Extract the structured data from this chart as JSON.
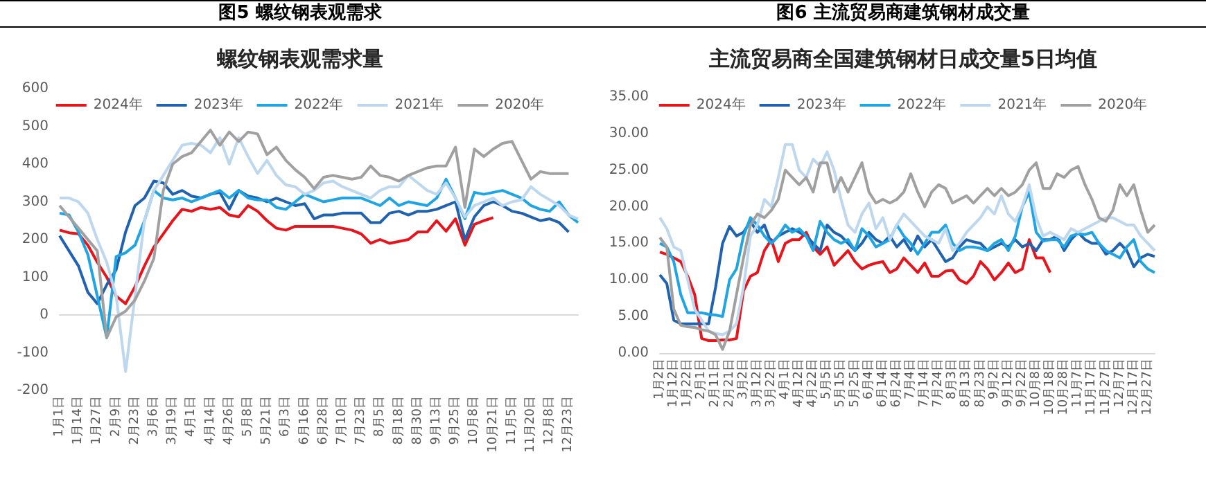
{
  "chart_data": [
    {
      "type": "line",
      "title": "图5 螺纹钢表观需求",
      "subtitle": "螺纹钢表观需求量",
      "categories": [
        "1月1日",
        null,
        "1月14日",
        null,
        "1月27日",
        null,
        "2月9日",
        null,
        "2月23日",
        null,
        "3月6日",
        null,
        "3月19日",
        null,
        "4月1日",
        null,
        "4月14日",
        null,
        "4月26日",
        null,
        "5月8日",
        null,
        "5月21日",
        null,
        "6月3日",
        null,
        "6月16日",
        null,
        "6月28日",
        null,
        "7月10日",
        null,
        "7月23日",
        null,
        "8月5日",
        null,
        "8月18日",
        null,
        "8月30日",
        null,
        "9月13日",
        null,
        "9月25日",
        null,
        "10月8日",
        null,
        "10月21日",
        null,
        "11月5日",
        null,
        "11月20日",
        null,
        "12月8日",
        null,
        "12月23日",
        null
      ],
      "series": [
        {
          "name": "2024年",
          "color": "#e8141b",
          "values": [
            225,
            218,
            215,
            185,
            140,
            100,
            50,
            30,
            75,
            130,
            180,
            215,
            250,
            280,
            275,
            285,
            280,
            285,
            265,
            260,
            290,
            275,
            250,
            230,
            225,
            235,
            235,
            235,
            235,
            235,
            230,
            225,
            215,
            190,
            200,
            190,
            195,
            200,
            220,
            220,
            250,
            222,
            255,
            185,
            240,
            250,
            258,
            null,
            null,
            null,
            null,
            null,
            null,
            null,
            null,
            null
          ]
        },
        {
          "name": "2023年",
          "color": "#1f63b0",
          "values": [
            210,
            170,
            130,
            60,
            30,
            80,
            120,
            220,
            290,
            310,
            355,
            350,
            320,
            330,
            315,
            310,
            320,
            325,
            280,
            330,
            315,
            310,
            300,
            310,
            300,
            290,
            295,
            255,
            265,
            265,
            270,
            270,
            270,
            245,
            245,
            270,
            275,
            265,
            275,
            275,
            280,
            290,
            300,
            200,
            260,
            290,
            300,
            290,
            275,
            270,
            260,
            250,
            255,
            245,
            220,
            null
          ]
        },
        {
          "name": "2022年",
          "color": "#1fa5e3",
          "values": [
            270,
            265,
            220,
            160,
            50,
            -60,
            155,
            165,
            185,
            250,
            330,
            310,
            305,
            310,
            300,
            310,
            320,
            330,
            310,
            330,
            310,
            305,
            305,
            285,
            280,
            300,
            320,
            310,
            300,
            305,
            310,
            310,
            310,
            300,
            290,
            310,
            290,
            300,
            295,
            290,
            310,
            360,
            310,
            255,
            325,
            320,
            325,
            330,
            320,
            310,
            290,
            280,
            275,
            300,
            265,
            245
          ]
        },
        {
          "name": "2021年",
          "color": "#bdd7ee",
          "values": [
            310,
            310,
            300,
            270,
            200,
            140,
            50,
            -150,
            50,
            250,
            330,
            370,
            410,
            450,
            455,
            450,
            430,
            470,
            400,
            470,
            420,
            375,
            410,
            370,
            345,
            340,
            320,
            330,
            350,
            355,
            340,
            330,
            320,
            310,
            330,
            340,
            340,
            370,
            350,
            330,
            320,
            350,
            310,
            260,
            290,
            300,
            310,
            290,
            300,
            305,
            340,
            320,
            305,
            290,
            265,
            255
          ]
        },
        {
          "name": "2020年",
          "color": "#a0a0a0",
          "values": [
            290,
            260,
            230,
            200,
            170,
            -60,
            -5,
            10,
            40,
            90,
            150,
            330,
            400,
            420,
            430,
            460,
            490,
            450,
            485,
            460,
            485,
            480,
            425,
            445,
            410,
            385,
            365,
            335,
            365,
            370,
            365,
            360,
            365,
            395,
            370,
            365,
            355,
            370,
            380,
            390,
            395,
            395,
            445,
            285,
            440,
            420,
            440,
            455,
            460,
            410,
            360,
            380,
            375,
            375,
            375,
            null
          ]
        }
      ],
      "ylim": [
        -200,
        600
      ],
      "yticks": [
        -200,
        -100,
        0,
        100,
        200,
        300,
        400,
        500,
        600
      ],
      "legend": "top",
      "marker": "none"
    },
    {
      "type": "line",
      "title": "图6 主流贸易商建筑钢材成交量",
      "subtitle": "主流贸易商全国建筑钢材日成交量5日均值",
      "categories": [
        "1月2日",
        null,
        "1月12日",
        null,
        "1月22日",
        null,
        "2月1日",
        null,
        "2月11日",
        null,
        "2月21日",
        null,
        "3月2日",
        null,
        "3月12日",
        null,
        "3月22日",
        null,
        "4月1日",
        null,
        "4月12日",
        null,
        "4月22日",
        null,
        "5月5日",
        null,
        "5月15日",
        null,
        "5月25日",
        null,
        "6月4日",
        null,
        "6月14日",
        null,
        "6月24日",
        null,
        "7月4日",
        null,
        "7月14日",
        null,
        "7月24日",
        null,
        "8月3日",
        null,
        "8月13日",
        null,
        "8月23日",
        null,
        "9月2日",
        null,
        "9月12日",
        null,
        "9月22日",
        null,
        "10月8日",
        null,
        "10月18日",
        null,
        "10月28日",
        null,
        "11月7日",
        null,
        "11月17日",
        null,
        "11月27日",
        null,
        "12月7日",
        null,
        "12月17日",
        null,
        "12月27日",
        null
      ],
      "series": [
        {
          "name": "2024年",
          "color": "#e8141b",
          "values": [
            13.8,
            13.5,
            13,
            12.5,
            10.5,
            8,
            2,
            1.7,
            1.7,
            1.8,
            1.8,
            2,
            8.5,
            10.5,
            11,
            14,
            15.5,
            12.5,
            15,
            15.5,
            15.5,
            16.5,
            14.5,
            13.5,
            14.5,
            12,
            13,
            14,
            12.5,
            11.5,
            12,
            12.3,
            12.5,
            11,
            11.5,
            13,
            12,
            11,
            12.3,
            10.5,
            10.5,
            11.2,
            11.3,
            10,
            9.5,
            10.5,
            12.5,
            11.5,
            10,
            11,
            12.3,
            11,
            11.5,
            15.5,
            13,
            13,
            11,
            null,
            null,
            null,
            null,
            null,
            null,
            null,
            null,
            null,
            null,
            null,
            null,
            null,
            null,
            null
          ]
        },
        {
          "name": "2023年",
          "color": "#1f63b0",
          "values": [
            10.7,
            9.5,
            4.5,
            4,
            4,
            4,
            4,
            4,
            9,
            15,
            17.3,
            16,
            16.5,
            18,
            16.5,
            17.5,
            15,
            16,
            16.5,
            17,
            16.5,
            16,
            15,
            14,
            17.5,
            16.5,
            16,
            15,
            14,
            15,
            16.5,
            15.5,
            15,
            16,
            14.5,
            15.5,
            14,
            16,
            14.5,
            15.5,
            14,
            12.5,
            13,
            14.5,
            15.5,
            15.2,
            15,
            14,
            14.5,
            15,
            14.5,
            15.5,
            14.5,
            15,
            14,
            15.5,
            15.5,
            16,
            14,
            15.5,
            16.5,
            15.5,
            15,
            15,
            13.5,
            14,
            15,
            14,
            11.8,
            13,
            13.5,
            13.2
          ]
        },
        {
          "name": "2022年",
          "color": "#1fa5e3",
          "values": [
            15,
            14.5,
            12.5,
            8,
            5.5,
            5.5,
            5.5,
            5.3,
            5.2,
            5,
            10,
            11.5,
            16,
            18.5,
            17.5,
            16,
            15,
            16,
            17.5,
            16.5,
            17,
            16,
            14,
            18,
            16.5,
            15.5,
            15,
            15.5,
            14,
            17,
            16,
            14.5,
            15,
            15.5,
            17.5,
            16,
            15,
            13.5,
            15,
            16.5,
            16.5,
            17.5,
            15,
            14,
            14.5,
            14.5,
            14.3,
            14,
            15,
            15.5,
            14,
            16,
            20,
            22,
            16.5,
            15.3,
            15.5,
            15.5,
            14.5,
            16,
            16.3,
            16.2,
            16.5,
            15,
            14,
            13.5,
            13,
            14.5,
            15.5,
            12.5,
            11.5,
            11
          ]
        },
        {
          "name": "2021年",
          "color": "#bdd7ee",
          "values": [
            18.5,
            17,
            14.5,
            14,
            10,
            6,
            4.5,
            3,
            2.7,
            2.5,
            3,
            4,
            9,
            16,
            17.5,
            21,
            20,
            24,
            28.5,
            28.5,
            25,
            24,
            26.5,
            25.5,
            27.5,
            25,
            21,
            17.5,
            16.5,
            19,
            20.5,
            17,
            18.5,
            15.5,
            17.5,
            19,
            18,
            17,
            16,
            15.5,
            15,
            17,
            14,
            15,
            16.5,
            17.5,
            18.5,
            20,
            19,
            21.5,
            19,
            18,
            20,
            23,
            18.5,
            16,
            16.5,
            16,
            15.5,
            17,
            16.5,
            17,
            17.5,
            18,
            18.5,
            18.5,
            18,
            17.5,
            17.5,
            16,
            15,
            14
          ]
        },
        {
          "name": "2020年",
          "color": "#a0a0a0",
          "values": [
            15.8,
            14.5,
            6,
            3.8,
            3.6,
            3.5,
            3.2,
            3,
            2.5,
            0.5,
            3,
            8,
            13,
            17.5,
            19,
            18.5,
            19.5,
            21,
            25,
            24,
            23,
            24,
            22,
            26,
            26,
            22,
            24,
            22,
            24,
            26,
            22,
            20.5,
            21,
            20.5,
            21,
            22,
            24.5,
            22,
            20,
            22,
            23,
            22.5,
            20.5,
            21,
            21.5,
            20.5,
            21.5,
            22.5,
            21.5,
            22.5,
            21.5,
            22,
            23,
            25,
            26,
            22.5,
            22.5,
            24.5,
            24,
            25,
            25.5,
            23,
            21,
            18.5,
            18,
            19.5,
            23,
            21.5,
            23,
            19.5,
            16.5,
            17.5
          ]
        }
      ],
      "ylim": [
        0,
        35
      ],
      "yticks": [
        {
          "value": 0,
          "label": "0.00"
        },
        {
          "value": 5,
          "label": "5.00"
        },
        {
          "value": 10,
          "label": "10.00"
        },
        {
          "value": 15,
          "label": "15.00"
        },
        {
          "value": 20,
          "label": "20.00"
        },
        {
          "value": 25,
          "label": "25.00"
        },
        {
          "value": 30,
          "label": "30.00"
        },
        {
          "value": 35,
          "label": "35.00"
        }
      ],
      "legend": "top",
      "marker": "none"
    }
  ]
}
